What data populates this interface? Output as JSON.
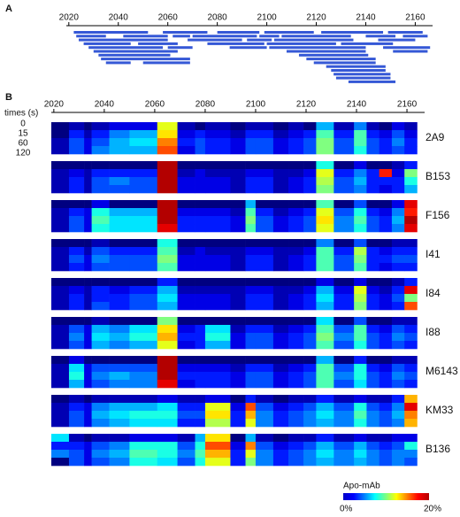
{
  "chart_data": [
    {
      "type": "range-bar",
      "label": "A",
      "xlim": [
        2019,
        2167
      ],
      "xticks": [
        2020,
        2040,
        2060,
        2080,
        2100,
        2120,
        2140,
        2160
      ],
      "color": "#3558d6",
      "peptides": [
        [
          2022,
          2052
        ],
        [
          2023,
          2035
        ],
        [
          2024,
          2060
        ],
        [
          2026,
          2045
        ],
        [
          2028,
          2058
        ],
        [
          2030,
          2064
        ],
        [
          2032,
          2061
        ],
        [
          2033,
          2069
        ],
        [
          2035,
          2045
        ],
        [
          2042,
          2060
        ],
        [
          2048,
          2064
        ],
        [
          2050,
          2069
        ],
        [
          2058,
          2076
        ],
        [
          2060,
          2070
        ],
        [
          2062,
          2069
        ],
        [
          2068,
          2090
        ],
        [
          2070,
          2096
        ],
        [
          2076,
          2099
        ],
        [
          2080,
          2097
        ],
        [
          2085,
          2100
        ],
        [
          2092,
          2102
        ],
        [
          2097,
          2105
        ],
        [
          2099,
          2119
        ],
        [
          2100,
          2128
        ],
        [
          2101,
          2140
        ],
        [
          2103,
          2135
        ],
        [
          2106,
          2134
        ],
        [
          2108,
          2140
        ],
        [
          2113,
          2141
        ],
        [
          2116,
          2144
        ],
        [
          2119,
          2144
        ],
        [
          2122,
          2147
        ],
        [
          2124,
          2148
        ],
        [
          2126,
          2148
        ],
        [
          2127,
          2150
        ],
        [
          2128,
          2150
        ],
        [
          2130,
          2151
        ],
        [
          2133,
          2152
        ],
        [
          2140,
          2152
        ],
        [
          2145,
          2160
        ],
        [
          2147,
          2166
        ],
        [
          2149,
          2163
        ],
        [
          2151,
          2165
        ],
        [
          2155,
          2165
        ]
      ]
    },
    {
      "type": "heatmap",
      "label": "B",
      "xlim": [
        2019,
        2167
      ],
      "xticks": [
        2020,
        2040,
        2060,
        2080,
        2100,
        2120,
        2140,
        2160
      ],
      "time_label": "times (s)",
      "times": [
        0,
        15,
        60,
        120
      ],
      "segments": [
        2019,
        2026,
        2032,
        2035,
        2042,
        2050,
        2061,
        2069,
        2076,
        2080,
        2090,
        2096,
        2100,
        2107,
        2113,
        2119,
        2124,
        2131,
        2139,
        2144,
        2149,
        2154,
        2159,
        2164
      ],
      "colorbar": {
        "label": "Apo-mAb",
        "min": {
          "value": 0,
          "label": "0%"
        },
        "max": {
          "value": 20,
          "label": "20%"
        }
      },
      "panels": [
        {
          "name": "2A9",
          "values": [
            [
              0,
              1,
              0,
              1,
              2,
              2,
              12,
              1,
              0,
              1,
              0,
              1,
              1,
              0,
              1,
              0,
              6,
              1,
              5,
              1,
              0,
              2,
              1
            ],
            [
              0,
              3,
              1,
              3,
              5,
              6,
              13,
              2,
              3,
              2,
              1,
              3,
              3,
              1,
              2,
              3,
              9,
              3,
              9,
              3,
              2,
              4,
              2
            ],
            [
              1,
              4,
              2,
              4,
              6,
              7,
              15,
              3,
              4,
              3,
              2,
              4,
              4,
              2,
              3,
              4,
              10,
              4,
              9,
              4,
              3,
              5,
              3
            ],
            [
              1,
              4,
              2,
              5,
              6,
              6,
              16,
              2,
              4,
              3,
              2,
              4,
              4,
              2,
              3,
              4,
              10,
              4,
              8,
              4,
              3,
              4,
              3
            ]
          ]
        },
        {
          "name": "B153",
          "values": [
            [
              0,
              0,
              0,
              0,
              0,
              0,
              19,
              0,
              0,
              0,
              0,
              0,
              0,
              0,
              0,
              0,
              8,
              0,
              2,
              0,
              0,
              1,
              3
            ],
            [
              1,
              2,
              1,
              3,
              3,
              3,
              19,
              1,
              2,
              1,
              1,
              2,
              2,
              1,
              1,
              2,
              12,
              3,
              5,
              3,
              17,
              2,
              10
            ],
            [
              1,
              3,
              1,
              4,
              5,
              4,
              19,
              2,
              2,
              2,
              1,
              3,
              3,
              1,
              2,
              3,
              11,
              4,
              6,
              3,
              3,
              3,
              8
            ],
            [
              1,
              3,
              1,
              4,
              4,
              4,
              19,
              2,
              2,
              2,
              1,
              3,
              3,
              1,
              2,
              3,
              10,
              4,
              5,
              3,
              2,
              3,
              6
            ]
          ]
        },
        {
          "name": "F156",
          "values": [
            [
              0,
              0,
              0,
              2,
              0,
              0,
              19,
              0,
              0,
              0,
              0,
              6,
              0,
              0,
              0,
              0,
              9,
              0,
              4,
              0,
              0,
              2,
              18
            ],
            [
              1,
              3,
              2,
              8,
              6,
              6,
              19,
              2,
              2,
              2,
              1,
              9,
              3,
              1,
              2,
              3,
              12,
              4,
              8,
              3,
              2,
              5,
              17
            ],
            [
              1,
              4,
              2,
              9,
              7,
              7,
              19,
              3,
              3,
              3,
              2,
              10,
              4,
              2,
              3,
              4,
              13,
              5,
              9,
              4,
              3,
              6,
              19
            ],
            [
              1,
              4,
              2,
              8,
              7,
              7,
              18,
              3,
              3,
              3,
              2,
              9,
              4,
              2,
              3,
              4,
              12,
              5,
              8,
              4,
              3,
              5,
              18
            ]
          ]
        },
        {
          "name": "I41",
          "values": [
            [
              0,
              0,
              0,
              1,
              0,
              0,
              8,
              0,
              0,
              0,
              0,
              0,
              0,
              0,
              0,
              0,
              5,
              0,
              4,
              0,
              0,
              1,
              1
            ],
            [
              1,
              3,
              1,
              4,
              3,
              3,
              9,
              1,
              2,
              1,
              1,
              2,
              2,
              1,
              1,
              2,
              9,
              3,
              11,
              3,
              2,
              3,
              3
            ],
            [
              1,
              4,
              2,
              5,
              4,
              4,
              10,
              2,
              2,
              2,
              1,
              3,
              3,
              1,
              2,
              3,
              9,
              4,
              10,
              3,
              3,
              4,
              4
            ],
            [
              1,
              3,
              2,
              4,
              4,
              4,
              9,
              2,
              2,
              2,
              1,
              3,
              3,
              1,
              2,
              3,
              9,
              4,
              9,
              3,
              2,
              3,
              3
            ]
          ]
        },
        {
          "name": "I84",
          "values": [
            [
              0,
              0,
              0,
              0,
              0,
              0,
              3,
              0,
              0,
              0,
              0,
              0,
              0,
              0,
              0,
              0,
              2,
              0,
              2,
              0,
              0,
              1,
              3
            ],
            [
              1,
              2,
              1,
              3,
              2,
              3,
              6,
              1,
              1,
              1,
              1,
              2,
              2,
              1,
              1,
              2,
              6,
              2,
              12,
              2,
              1,
              3,
              18
            ],
            [
              1,
              3,
              1,
              3,
              3,
              4,
              7,
              2,
              2,
              2,
              1,
              3,
              3,
              1,
              2,
              3,
              7,
              3,
              11,
              3,
              2,
              4,
              10
            ],
            [
              1,
              3,
              1,
              4,
              3,
              4,
              6,
              2,
              2,
              2,
              1,
              3,
              3,
              1,
              2,
              3,
              6,
              3,
              10,
              3,
              2,
              3,
              16
            ]
          ]
        },
        {
          "name": "I88",
          "values": [
            [
              0,
              0,
              0,
              1,
              0,
              0,
              10,
              0,
              0,
              0,
              0,
              0,
              0,
              0,
              0,
              0,
              7,
              0,
              4,
              0,
              0,
              1,
              1
            ],
            [
              1,
              4,
              2,
              6,
              5,
              7,
              13,
              2,
              3,
              7,
              1,
              3,
              3,
              1,
              2,
              3,
              9,
              4,
              9,
              3,
              2,
              4,
              3
            ],
            [
              1,
              5,
              2,
              7,
              6,
              8,
              14,
              3,
              3,
              8,
              2,
              4,
              4,
              2,
              3,
              4,
              10,
              5,
              9,
              4,
              3,
              5,
              4
            ],
            [
              1,
              4,
              2,
              6,
              5,
              6,
              12,
              2,
              3,
              6,
              2,
              4,
              4,
              2,
              3,
              4,
              9,
              4,
              8,
              4,
              3,
              4,
              3
            ]
          ]
        },
        {
          "name": "M6143",
          "values": [
            [
              0,
              2,
              0,
              0,
              0,
              0,
              19,
              0,
              0,
              0,
              0,
              0,
              0,
              0,
              0,
              0,
              6,
              0,
              3,
              0,
              0,
              1,
              1
            ],
            [
              1,
              7,
              2,
              4,
              4,
              4,
              19,
              2,
              2,
              2,
              1,
              3,
              3,
              1,
              2,
              3,
              9,
              4,
              8,
              3,
              2,
              4,
              3
            ],
            [
              1,
              8,
              2,
              5,
              6,
              5,
              19,
              3,
              3,
              3,
              2,
              4,
              4,
              2,
              3,
              4,
              9,
              5,
              8,
              4,
              3,
              5,
              4
            ],
            [
              1,
              6,
              2,
              4,
              5,
              5,
              18,
              2,
              3,
              3,
              2,
              4,
              4,
              2,
              3,
              4,
              9,
              4,
              7,
              4,
              3,
              4,
              3
            ]
          ]
        },
        {
          "name": "KM33",
          "values": [
            [
              0,
              1,
              0,
              1,
              1,
              1,
              2,
              1,
              1,
              2,
              0,
              3,
              1,
              0,
              1,
              1,
              3,
              1,
              2,
              1,
              1,
              3,
              14
            ],
            [
              1,
              3,
              2,
              5,
              6,
              6,
              7,
              3,
              3,
              12,
              2,
              16,
              4,
              2,
              3,
              4,
              6,
              4,
              8,
              4,
              3,
              5,
              18
            ],
            [
              1,
              4,
              2,
              6,
              7,
              8,
              8,
              4,
              4,
              13,
              3,
              14,
              5,
              3,
              4,
              5,
              7,
              5,
              9,
              5,
              4,
              6,
              15
            ],
            [
              1,
              4,
              2,
              5,
              6,
              7,
              7,
              3,
              3,
              11,
              3,
              12,
              5,
              3,
              4,
              5,
              6,
              5,
              8,
              5,
              4,
              5,
              14
            ]
          ]
        },
        {
          "name": "B136",
          "values": [
            [
              7,
              1,
              0,
              1,
              1,
              2,
              2,
              1,
              6,
              13,
              0,
              6,
              1,
              0,
              1,
              1,
              3,
              1,
              2,
              1,
              1,
              2,
              2
            ],
            [
              3,
              3,
              2,
              4,
              5,
              8,
              8,
              4,
              8,
              16,
              2,
              15,
              4,
              2,
              3,
              4,
              6,
              4,
              6,
              4,
              3,
              4,
              8
            ],
            [
              5,
              4,
              2,
              5,
              6,
              9,
              8,
              5,
              9,
              14,
              3,
              12,
              5,
              3,
              4,
              5,
              7,
              5,
              7,
              5,
              4,
              5,
              5
            ],
            [
              0,
              4,
              2,
              4,
              5,
              8,
              7,
              4,
              8,
              12,
              3,
              10,
              5,
              3,
              4,
              5,
              6,
              5,
              6,
              5,
              4,
              5,
              4
            ]
          ]
        }
      ]
    }
  ]
}
